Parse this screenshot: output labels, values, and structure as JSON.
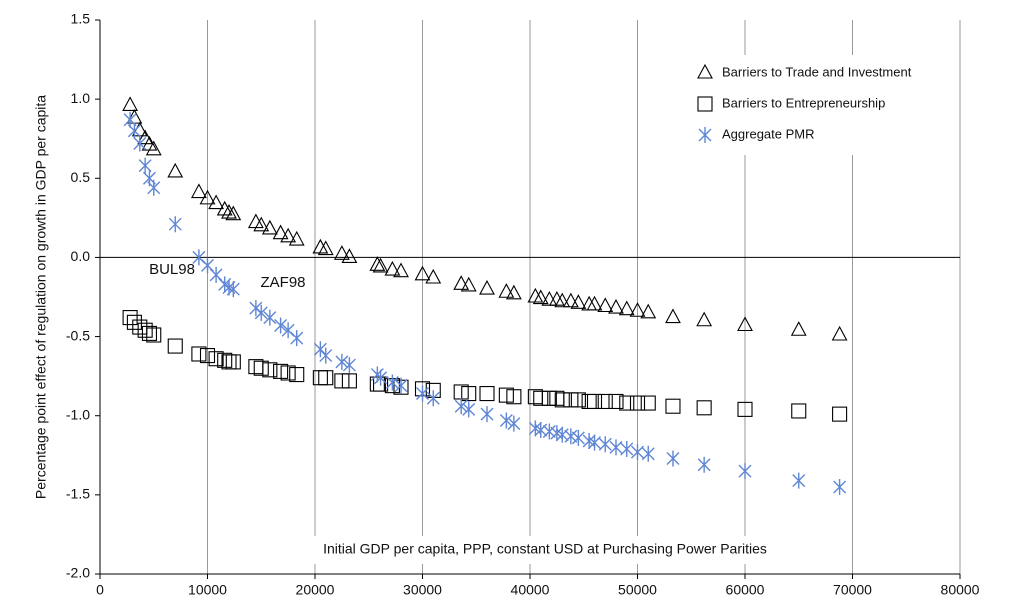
{
  "chart_data": {
    "type": "scatter",
    "ylabel": "Percentage point effect of regulation on growth in GDP per capita",
    "xlabel": "Initial GDP per capita, PPP, constant USD at Purchasing Power Parities",
    "annotations": [
      "BUL98",
      "ZAF98"
    ],
    "xlim": [
      0,
      80000
    ],
    "xticks": [
      0,
      10000,
      20000,
      30000,
      40000,
      50000,
      60000,
      70000,
      80000
    ],
    "ylim": [
      -2,
      1.5
    ],
    "yticks": [
      1.5,
      {
        "value": 1,
        "label": "1.0"
      },
      0.5,
      {
        "value": 0,
        "label": "0.0"
      },
      -0.5,
      {
        "value": -1,
        "label": "-1.0"
      },
      -1.5,
      {
        "value": -2,
        "label": "-2.0"
      }
    ],
    "grid": "x",
    "legend": "upper right",
    "x": [
      2800,
      3200,
      3700,
      4200,
      4600,
      5000,
      7000,
      9200,
      10000,
      10800,
      11600,
      12000,
      12400,
      14500,
      15000,
      15800,
      16800,
      17500,
      18300,
      20500,
      21000,
      22500,
      23200,
      25800,
      26100,
      27200,
      28000,
      30000,
      31000,
      33600,
      34300,
      36000,
      37800,
      38500,
      40500,
      41000,
      41800,
      42500,
      43000,
      43800,
      44500,
      45500,
      46000,
      47000,
      48000,
      49000,
      50000,
      51000,
      53300,
      56200,
      60000,
      65000,
      68800
    ],
    "series": [
      {
        "name": "Barriers to Trade and Investment",
        "marker": "triangle",
        "color": "#000000",
        "values": [
          0.96,
          0.88,
          0.8,
          0.75,
          0.71,
          0.68,
          0.54,
          0.41,
          0.37,
          0.34,
          0.3,
          0.28,
          0.27,
          0.22,
          0.2,
          0.18,
          0.15,
          0.13,
          0.11,
          0.06,
          0.05,
          0.02,
          0.0,
          -0.05,
          -0.06,
          -0.08,
          -0.09,
          -0.11,
          -0.13,
          -0.17,
          -0.18,
          -0.2,
          -0.22,
          -0.23,
          -0.25,
          -0.26,
          -0.27,
          -0.27,
          -0.28,
          -0.28,
          -0.29,
          -0.3,
          -0.3,
          -0.31,
          -0.32,
          -0.33,
          -0.34,
          -0.35,
          -0.38,
          -0.4,
          -0.43,
          -0.46,
          -0.49
        ]
      },
      {
        "name": "Barriers to Entrepreneurship",
        "marker": "square",
        "color": "#000000",
        "values": [
          -0.38,
          -0.41,
          -0.44,
          -0.46,
          -0.48,
          -0.49,
          -0.56,
          -0.61,
          -0.62,
          -0.64,
          -0.65,
          -0.66,
          -0.66,
          -0.69,
          -0.7,
          -0.71,
          -0.72,
          -0.73,
          -0.74,
          -0.76,
          -0.76,
          -0.78,
          -0.78,
          -0.8,
          -0.8,
          -0.81,
          -0.82,
          -0.83,
          -0.84,
          -0.85,
          -0.86,
          -0.86,
          -0.87,
          -0.88,
          -0.88,
          -0.89,
          -0.89,
          -0.89,
          -0.9,
          -0.9,
          -0.9,
          -0.91,
          -0.91,
          -0.91,
          -0.91,
          -0.92,
          -0.92,
          -0.92,
          -0.94,
          -0.95,
          -0.96,
          -0.97,
          -0.99
        ]
      },
      {
        "name": "Aggregate PMR",
        "marker": "asterisk",
        "color": "#5f86d4",
        "values": [
          0.87,
          0.8,
          0.72,
          0.58,
          0.5,
          0.44,
          0.21,
          0.0,
          -0.05,
          -0.11,
          -0.17,
          -0.19,
          -0.2,
          -0.32,
          -0.35,
          -0.38,
          -0.43,
          -0.46,
          -0.51,
          -0.58,
          -0.62,
          -0.66,
          -0.68,
          -0.74,
          -0.76,
          -0.79,
          -0.81,
          -0.86,
          -0.89,
          -0.94,
          -0.96,
          -0.99,
          -1.03,
          -1.05,
          -1.08,
          -1.09,
          -1.1,
          -1.11,
          -1.12,
          -1.13,
          -1.14,
          -1.16,
          -1.17,
          -1.18,
          -1.2,
          -1.21,
          -1.23,
          -1.24,
          -1.27,
          -1.31,
          -1.35,
          -1.41,
          -1.45
        ]
      }
    ]
  }
}
